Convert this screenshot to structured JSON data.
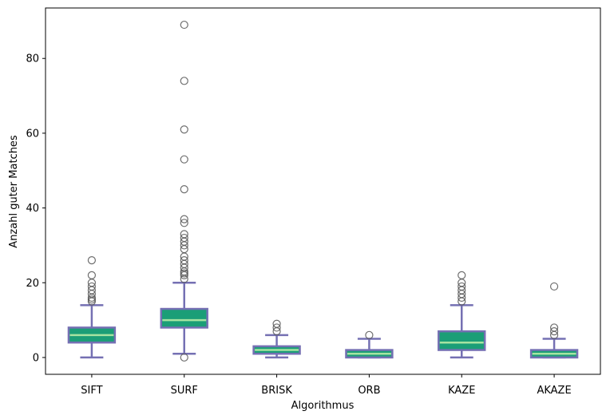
{
  "chart_data": {
    "type": "box",
    "title": "",
    "xlabel": "Algorithmus",
    "ylabel": "Anzahl guter Matches",
    "ylim": [
      -4.5,
      93.5
    ],
    "yticks": [
      0,
      20,
      40,
      60,
      80
    ],
    "grid": false,
    "colors": {
      "box_fill": "#1b9e77",
      "box_edge": "#7570b3",
      "median": "#a6e3a1",
      "whisker": "#7570b3",
      "flier_edge": "#555555"
    },
    "categories": [
      "SIFT",
      "SURF",
      "BRISK",
      "ORB",
      "KAZE",
      "AKAZE"
    ],
    "boxes": [
      {
        "label": "SIFT",
        "whislo": 0,
        "q1": 4,
        "med": 6,
        "q3": 8,
        "whishi": 14,
        "fliers": [
          15,
          15.5,
          16,
          17,
          18,
          19,
          20,
          22,
          26
        ]
      },
      {
        "label": "SURF",
        "whislo": 1,
        "q1": 8,
        "med": 10,
        "q3": 13,
        "whishi": 20,
        "fliers": [
          0,
          21,
          22,
          22.5,
          23,
          24,
          25,
          26,
          27,
          29,
          30,
          31,
          32,
          33,
          36,
          37,
          45,
          53,
          61,
          74,
          89
        ]
      },
      {
        "label": "BRISK",
        "whislo": 0,
        "q1": 1,
        "med": 2,
        "q3": 3,
        "whishi": 6,
        "fliers": [
          7,
          8,
          9
        ]
      },
      {
        "label": "ORB",
        "whislo": 0,
        "q1": 0,
        "med": 1,
        "q3": 2,
        "whishi": 5,
        "fliers": [
          6
        ]
      },
      {
        "label": "KAZE",
        "whislo": 0,
        "q1": 2,
        "med": 4,
        "q3": 7,
        "whishi": 14,
        "fliers": [
          15,
          16,
          17,
          18,
          19,
          20,
          22
        ]
      },
      {
        "label": "AKAZE",
        "whislo": 0,
        "q1": 0,
        "med": 1,
        "q3": 2,
        "whishi": 5,
        "fliers": [
          6,
          7,
          8,
          19
        ]
      }
    ]
  }
}
